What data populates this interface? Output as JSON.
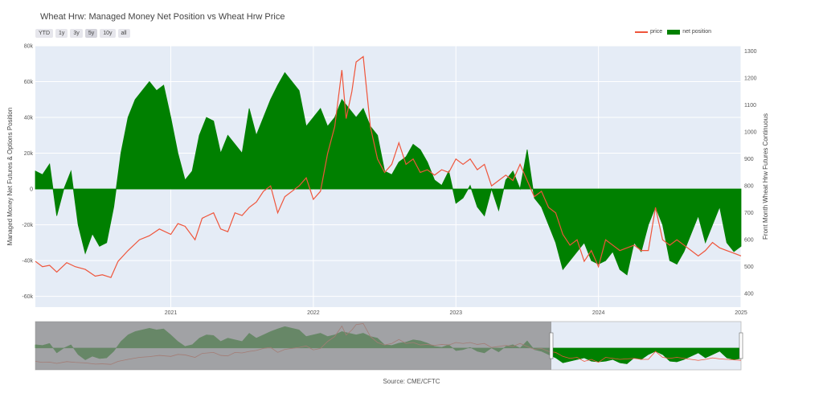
{
  "title": "Wheat Hrw: Managed Money Net Position vs Wheat Hrw Price",
  "range_buttons": [
    "YTD",
    "1y",
    "3y",
    "5y",
    "10y",
    "all"
  ],
  "active_range": "5y",
  "source": "Source: CME/CFTC",
  "colors": {
    "price": "#ef553b",
    "net_position": "#008000",
    "plot_bg": "#e5ecf6",
    "slider_mask": "#8a8a8a"
  },
  "chart_data": {
    "type": "line",
    "title": "Wheat Hrw: Managed Money Net Position vs Wheat Hrw Price",
    "xlabel": "",
    "ylabel": "Managed Money Net Futures & Options Position",
    "y2label": "Front Month Wheat Hrw Futures Continuous",
    "xlim": [
      2020.05,
      2025.0
    ],
    "ylim": [
      -66000,
      80000
    ],
    "y2lim": [
      350,
      1320
    ],
    "x_ticks": [
      2021,
      2022,
      2023,
      2024,
      2025
    ],
    "x_tick_labels": [
      "2021",
      "2022",
      "2023",
      "2024",
      "2025"
    ],
    "y_ticks": [
      -60000,
      -40000,
      -20000,
      0,
      20000,
      40000,
      60000,
      80000
    ],
    "y_tick_labels": [
      "-60k",
      "-40k",
      "-20k",
      "0",
      "20k",
      "40k",
      "60k",
      "80k"
    ],
    "y2_ticks": [
      400,
      500,
      600,
      700,
      800,
      900,
      1000,
      1100,
      1200,
      1300
    ],
    "y2_tick_labels": [
      "400",
      "500",
      "600",
      "700",
      "800",
      "900",
      "1000",
      "1100",
      "1200",
      "1300"
    ],
    "legend_placement": "top-right",
    "series": [
      {
        "name": "price",
        "axis": "y2",
        "style": "line",
        "x": [
          2020.05,
          2020.1,
          2020.15,
          2020.2,
          2020.27,
          2020.33,
          2020.4,
          2020.47,
          2020.52,
          2020.58,
          2020.63,
          2020.7,
          2020.78,
          2020.85,
          2020.92,
          2021.0,
          2021.05,
          2021.1,
          2021.17,
          2021.22,
          2021.3,
          2021.35,
          2021.4,
          2021.45,
          2021.5,
          2021.55,
          2021.6,
          2021.65,
          2021.7,
          2021.75,
          2021.8,
          2021.85,
          2021.9,
          2021.95,
          2022.0,
          2022.05,
          2022.1,
          2022.15,
          2022.2,
          2022.23,
          2022.27,
          2022.3,
          2022.35,
          2022.4,
          2022.45,
          2022.5,
          2022.55,
          2022.6,
          2022.65,
          2022.7,
          2022.75,
          2022.8,
          2022.85,
          2022.9,
          2022.95,
          2023.0,
          2023.05,
          2023.1,
          2023.15,
          2023.2,
          2023.25,
          2023.3,
          2023.35,
          2023.4,
          2023.45,
          2023.5,
          2023.55,
          2023.6,
          2023.65,
          2023.7,
          2023.75,
          2023.8,
          2023.85,
          2023.9,
          2023.95,
          2024.0,
          2024.05,
          2024.1,
          2024.15,
          2024.2,
          2024.25,
          2024.3,
          2024.35,
          2024.4,
          2024.45,
          2024.5,
          2024.55,
          2024.6,
          2024.65,
          2024.7,
          2024.75,
          2024.8,
          2024.85,
          2024.9,
          2024.95,
          2025.0
        ],
        "values": [
          520,
          500,
          505,
          480,
          515,
          500,
          490,
          465,
          470,
          460,
          520,
          560,
          600,
          615,
          640,
          620,
          660,
          650,
          600,
          680,
          700,
          640,
          630,
          700,
          690,
          720,
          740,
          780,
          800,
          700,
          760,
          780,
          800,
          830,
          750,
          780,
          920,
          1020,
          1230,
          1050,
          1150,
          1260,
          1280,
          1020,
          900,
          850,
          880,
          960,
          880,
          900,
          850,
          860,
          840,
          860,
          850,
          900,
          880,
          900,
          860,
          880,
          800,
          820,
          840,
          820,
          880,
          820,
          760,
          780,
          720,
          700,
          620,
          580,
          600,
          520,
          560,
          500,
          600,
          580,
          560,
          570,
          580,
          560,
          560,
          720,
          600,
          580,
          600,
          580,
          560,
          540,
          560,
          590,
          570,
          560,
          550,
          540
        ]
      },
      {
        "name": "net position",
        "axis": "y",
        "style": "area",
        "x": [
          2020.05,
          2020.1,
          2020.15,
          2020.2,
          2020.25,
          2020.3,
          2020.35,
          2020.4,
          2020.45,
          2020.5,
          2020.55,
          2020.6,
          2020.65,
          2020.7,
          2020.75,
          2020.8,
          2020.85,
          2020.9,
          2020.95,
          2021.0,
          2021.05,
          2021.1,
          2021.15,
          2021.2,
          2021.25,
          2021.3,
          2021.35,
          2021.4,
          2021.45,
          2021.5,
          2021.55,
          2021.6,
          2021.65,
          2021.7,
          2021.75,
          2021.8,
          2021.85,
          2021.9,
          2021.95,
          2022.0,
          2022.05,
          2022.1,
          2022.15,
          2022.2,
          2022.25,
          2022.3,
          2022.35,
          2022.4,
          2022.45,
          2022.5,
          2022.55,
          2022.6,
          2022.65,
          2022.7,
          2022.75,
          2022.8,
          2022.85,
          2022.9,
          2022.95,
          2023.0,
          2023.05,
          2023.1,
          2023.15,
          2023.2,
          2023.25,
          2023.3,
          2023.35,
          2023.4,
          2023.45,
          2023.5,
          2023.55,
          2023.6,
          2023.65,
          2023.7,
          2023.75,
          2023.8,
          2023.85,
          2023.9,
          2023.95,
          2024.0,
          2024.05,
          2024.1,
          2024.15,
          2024.2,
          2024.25,
          2024.3,
          2024.35,
          2024.4,
          2024.45,
          2024.5,
          2024.55,
          2024.6,
          2024.65,
          2024.7,
          2024.75,
          2024.8,
          2024.85,
          2024.9,
          2024.95,
          2025.0
        ],
        "values": [
          10000,
          8000,
          14000,
          -15000,
          0,
          10000,
          -20000,
          -36000,
          -25000,
          -32000,
          -30000,
          -10000,
          20000,
          40000,
          50000,
          55000,
          60000,
          55000,
          58000,
          40000,
          20000,
          5000,
          10000,
          30000,
          40000,
          38000,
          20000,
          30000,
          25000,
          20000,
          45000,
          30000,
          40000,
          50000,
          58000,
          65000,
          60000,
          55000,
          35000,
          40000,
          45000,
          35000,
          40000,
          50000,
          45000,
          40000,
          45000,
          35000,
          30000,
          10000,
          8000,
          15000,
          18000,
          25000,
          22000,
          15000,
          5000,
          2000,
          10000,
          -8000,
          -5000,
          2000,
          -10000,
          -15000,
          0,
          -12000,
          5000,
          10000,
          0,
          22000,
          -5000,
          -10000,
          -20000,
          -30000,
          -45000,
          -40000,
          -35000,
          -30000,
          -40000,
          -42000,
          -40000,
          -35000,
          -45000,
          -48000,
          -30000,
          -35000,
          -20000,
          -10000,
          -20000,
          -40000,
          -42000,
          -35000,
          -25000,
          -15000,
          -30000,
          -20000,
          -10000,
          -30000,
          -35000,
          -32000
        ]
      }
    ]
  }
}
